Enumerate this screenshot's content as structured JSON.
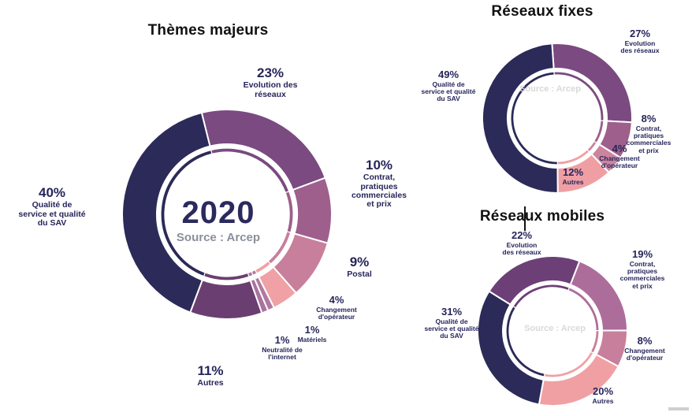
{
  "colors": {
    "navy": "#2b2a58",
    "purple": "#7a4a80",
    "purple_dark": "#6d3f77",
    "mauve": "#9e5f8c",
    "mauve_light": "#ad6d9b",
    "rose": "#c87f9b",
    "salmon": "#f0a1a5",
    "sliver": "#b07aa0",
    "label_text": "#26255b",
    "title_text": "#111111",
    "source_main_text": "#8a8f9b",
    "source_small_text": "#d9d9dc"
  },
  "chart_data": [
    {
      "id": "themes_majeurs",
      "type": "pie",
      "subtype": "donut",
      "title": "Thèmes majeurs",
      "center_label": "2020",
      "source": "Source : Arcep",
      "legend_position": "around",
      "segments": [
        {
          "label": "Evolution des réseaux",
          "pct": "23%",
          "value": 23,
          "color": "#7a4a80"
        },
        {
          "label": "Contrat, pratiques commerciales et prix",
          "pct": "10%",
          "value": 10,
          "color": "#9e5f8c"
        },
        {
          "label": "Postal",
          "pct": "9%",
          "value": 9,
          "color": "#c87f9b"
        },
        {
          "label": "Changement d'opérateur",
          "pct": "4%",
          "value": 4,
          "color": "#f0a1a5"
        },
        {
          "label": "Matériels",
          "pct": "1%",
          "value": 1,
          "color": "#b07aa0"
        },
        {
          "label": "Neutralité de l'internet",
          "pct": "1%",
          "value": 1,
          "color": "#a8739c"
        },
        {
          "label": "Autres",
          "pct": "11%",
          "value": 11,
          "color": "#6b3e72"
        },
        {
          "label": "Qualité de service et qualité du SAV",
          "pct": "40%",
          "value": 40,
          "color": "#2b2a58"
        }
      ]
    },
    {
      "id": "reseaux_fixes",
      "type": "pie",
      "subtype": "donut",
      "title": "Réseaux fixes",
      "source": "Source : Arcep",
      "legend_position": "around",
      "segments": [
        {
          "label": "Evolution des réseaux",
          "pct": "27%",
          "value": 27,
          "color": "#7a4a80"
        },
        {
          "label": "Contrat, pratiques commerciales et prix",
          "pct": "8%",
          "value": 8,
          "color": "#9e5f8c"
        },
        {
          "label": "Changement d'opérateur",
          "pct": "4%",
          "value": 4,
          "color": "#cc849e"
        },
        {
          "label": "Autres",
          "pct": "12%",
          "value": 12,
          "color": "#ef9fa3"
        },
        {
          "label": "Qualité de service et qualité du SAV",
          "pct": "49%",
          "value": 49,
          "color": "#2b2a58"
        }
      ]
    },
    {
      "id": "reseaux_mobiles",
      "type": "pie",
      "subtype": "donut",
      "title": "Réseaux mobiles",
      "source": "Source : Arcep",
      "legend_position": "around",
      "segments": [
        {
          "label": "Evolution des réseaux",
          "pct": "22%",
          "value": 22,
          "color": "#6d3f77"
        },
        {
          "label": "Contrat, pratiques commerciales et prix",
          "pct": "19%",
          "value": 19,
          "color": "#ad6d9b"
        },
        {
          "label": "Changement d'opérateur",
          "pct": "8%",
          "value": 8,
          "color": "#c87f9b"
        },
        {
          "label": "Autres",
          "pct": "20%",
          "value": 20,
          "color": "#f0a0a3"
        },
        {
          "label": "Qualité de service et qualité du SAV",
          "pct": "31%",
          "value": 31,
          "color": "#2b2a58"
        }
      ]
    }
  ]
}
